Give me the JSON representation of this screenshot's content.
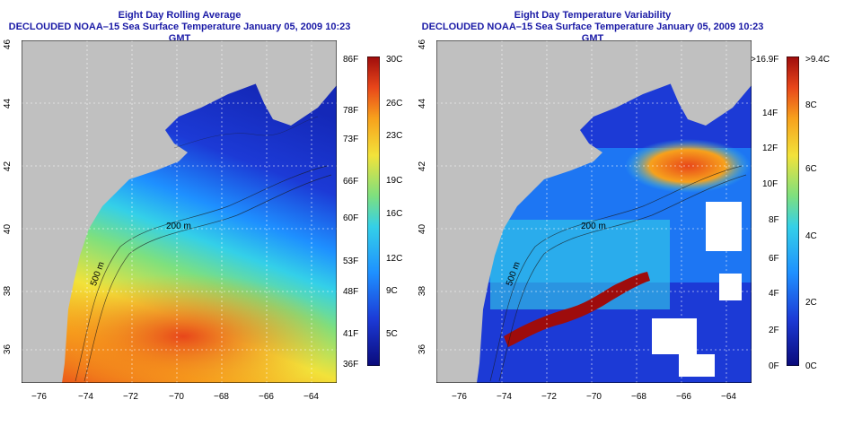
{
  "panels": [
    {
      "id": "left",
      "title1": "Eight Day Rolling Average",
      "title2": "DECLOUDED NOAA–15 Sea Surface Temperature January 05, 2009 10:23 GMT",
      "xticks": [
        "−76",
        "−74",
        "−72",
        "−70",
        "−68",
        "−66",
        "−64"
      ],
      "yticks": [
        "36",
        "38",
        "40",
        "42",
        "44",
        "46"
      ],
      "contours": [
        "200 m",
        "500 m",
        "200 m",
        "200 m"
      ],
      "cbar_left": [
        "86F",
        "78F",
        "73F",
        "66F",
        "60F",
        "53F",
        "48F",
        "41F",
        "36F"
      ],
      "cbar_right": [
        "30C",
        "26C",
        "23C",
        "19C",
        "16C",
        "12C",
        "9C",
        "5C"
      ]
    },
    {
      "id": "right",
      "title1": "Eight Day Temperature Variability",
      "title2": "DECLOUDED NOAA–15 Sea Surface Temperature January 05, 2009 10:23 GMT",
      "xticks": [
        "−76",
        "−74",
        "−72",
        "−70",
        "−68",
        "−66",
        "−64"
      ],
      "yticks": [
        "36",
        "38",
        "40",
        "42",
        "44",
        "46"
      ],
      "contours": [
        "200 m",
        "500 m",
        "200 m",
        "200 m"
      ],
      "cbar_left": [
        ">16.9F",
        "14F",
        "12F",
        "10F",
        "8F",
        "6F",
        "4F",
        "2F",
        "0F"
      ],
      "cbar_right": [
        ">9.4C",
        "8C",
        "6C",
        "4C",
        "2C",
        "0C"
      ]
    }
  ],
  "colors": {
    "land": "#c0c0c0",
    "ocean_scale": [
      "#0a0a7a",
      "#1c3ad6",
      "#1e90ff",
      "#34d0e8",
      "#7ee07e",
      "#f2e23a",
      "#f7a11c",
      "#e8461a",
      "#9e0c0c"
    ]
  }
}
